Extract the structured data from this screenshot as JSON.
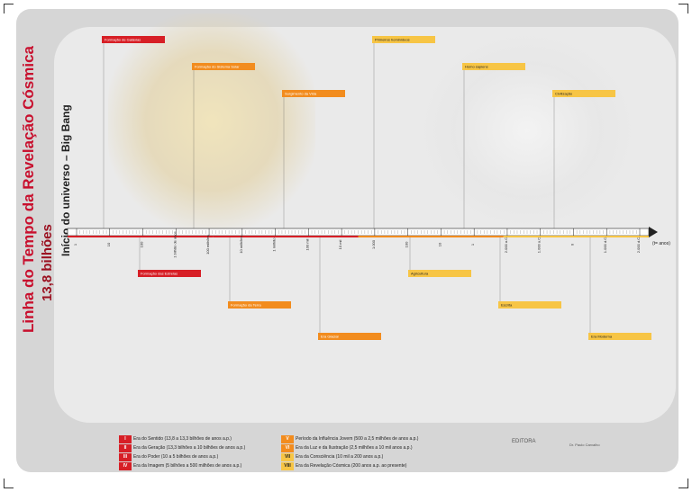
{
  "title": {
    "line1": "Linha do Tempo da Revelação Cósmica",
    "line2": "13,8 bilhões",
    "line3": "Início do universo – Big Bang"
  },
  "chart_data": {
    "type": "timeline",
    "axis_label": "(t= anos)",
    "ticks": [
      "1",
      "10",
      "100",
      "1 bilhão de anos",
      "100 milhões",
      "10 milhões",
      "1 milhão",
      "100 mil",
      "10 mil",
      "1.000",
      "100",
      "10",
      "1",
      "2.000 a.C.",
      "1.000 a.C.",
      "0",
      "1.000 d.C.",
      "2.000 d.C."
    ],
    "events_above": [
      "Formação de Galáxias",
      "Formação do Sistema Solar",
      "Surgimento da Vida",
      "Primeiros hominídeos",
      "Homo sapiens",
      "Civilização"
    ],
    "events_below": [
      "Formação das Estrelas",
      "Formação da Terra",
      "Era Glacial",
      "Agricultura",
      "Escrita",
      "Era Moderna"
    ]
  },
  "legend": {
    "rows": [
      {
        "num": "I",
        "color": "#d71f26",
        "label": "Era do Sentido (13,8 a 13,3 bilhões de anos a.p.)"
      },
      {
        "num": "II",
        "color": "#d71f26",
        "label": "Era da Geração (13,3 bilhões a 10 bilhões de anos a.p.)"
      },
      {
        "num": "III",
        "color": "#d71f26",
        "label": "Era do Poder (10 a 5 bilhões de anos a.p.)"
      },
      {
        "num": "IV",
        "color": "#d71f26",
        "label": "Era da Imagem (5 bilhões a 500 milhões de anos a.p.)"
      }
    ],
    "rows_right": [
      {
        "num": "V",
        "color": "#f28c1e",
        "label": "Período da Influência Jovem (500 a 2,5 milhões de anos a.p.)"
      },
      {
        "num": "VI",
        "color": "#f28c1e",
        "label": "Era da Luz e da Ilustração (2,5 milhões a 10 mil anos a.p.)"
      },
      {
        "num": "VII",
        "color": "#f7c545",
        "label": "Era da Consciência (10 mil a 200 anos a.p.)"
      },
      {
        "num": "VIII",
        "color": "#f7c545",
        "label": "Era da Revelação Cósmica (200 anos a.p. ao presente)"
      }
    ]
  },
  "logo": "EDITORA",
  "author": "Dr. Paulo Carvalho"
}
